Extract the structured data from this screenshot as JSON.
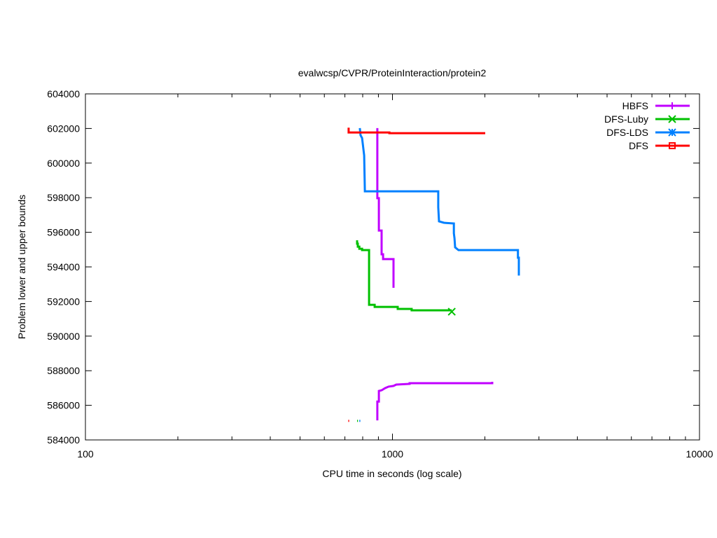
{
  "chart_data": {
    "type": "line",
    "title": "evalwcsp/CVPR/ProteinInteraction/protein2",
    "xlabel": "CPU time in seconds (log scale)",
    "ylabel": "Problem lower and upper bounds",
    "xscale": "log",
    "xlim": [
      100,
      10000
    ],
    "ylim": [
      584000,
      604000
    ],
    "xticks": [
      100,
      1000,
      10000
    ],
    "xtick_labels": [
      "100",
      "1000",
      "10000"
    ],
    "yticks": [
      584000,
      586000,
      588000,
      590000,
      592000,
      594000,
      596000,
      598000,
      600000,
      602000,
      604000
    ],
    "ytick_labels": [
      "584000",
      "586000",
      "588000",
      "590000",
      "592000",
      "594000",
      "596000",
      "598000",
      "600000",
      "602000",
      "604000"
    ],
    "grid": false,
    "legend_position": "top-right",
    "series": [
      {
        "name": "HBFS",
        "color": "#c000ff",
        "marker": "plus",
        "segments": [
          [
            [
              893,
              602020
            ],
            [
              893,
              597970
            ],
            [
              903,
              597970
            ],
            [
              903,
              596100
            ],
            [
              922,
              596100
            ],
            [
              922,
              594730
            ],
            [
              932,
              594730
            ],
            [
              932,
              594450
            ],
            [
              1008,
              594450
            ],
            [
              1008,
              592790
            ]
          ],
          [
            [
              893,
              585130
            ],
            [
              893,
              586220
            ],
            [
              903,
              586220
            ],
            [
              903,
              586830
            ],
            [
              922,
              586870
            ],
            [
              946,
              586990
            ],
            [
              971,
              587080
            ],
            [
              1008,
              587120
            ],
            [
              1029,
              587200
            ],
            [
              1137,
              587240
            ],
            [
              1137,
              587280
            ],
            [
              2113,
              587280
            ],
            [
              2113,
              587360
            ]
          ]
        ],
        "end_marker": false
      },
      {
        "name": "DFS-Luby",
        "color": "#00c000",
        "marker": "x",
        "segments": [
          [
            [
              767,
              595540
            ],
            [
              767,
              595340
            ],
            [
              771,
              595340
            ],
            [
              771,
              595170
            ],
            [
              780,
              595170
            ],
            [
              780,
              595050
            ],
            [
              796,
              595050
            ],
            [
              796,
              594970
            ],
            [
              839,
              594970
            ],
            [
              839,
              591810
            ],
            [
              875,
              591810
            ],
            [
              875,
              591690
            ],
            [
              1040,
              591690
            ],
            [
              1040,
              591570
            ],
            [
              1155,
              591570
            ],
            [
              1155,
              591490
            ],
            [
              1560,
              591490
            ]
          ],
          [
            [
              767,
              585100
            ],
            [
              772,
              585100
            ]
          ]
        ],
        "end_marker": true,
        "end_point": [
          1560,
          591410
        ]
      },
      {
        "name": "DFS-LDS",
        "color": "#0080ff",
        "marker": "star",
        "segments": [
          [
            [
              783,
              602020
            ],
            [
              787,
              601610
            ],
            [
              796,
              601450
            ],
            [
              809,
              600440
            ],
            [
              813,
              598370
            ],
            [
              1410,
              598370
            ],
            [
              1410,
              597440
            ],
            [
              1418,
              596630
            ],
            [
              1471,
              596550
            ],
            [
              1585,
              596510
            ],
            [
              1585,
              595940
            ],
            [
              1592,
              595660
            ],
            [
              1600,
              595130
            ],
            [
              1641,
              594970
            ],
            [
              2563,
              594970
            ],
            [
              2563,
              594530
            ],
            [
              2580,
              594530
            ],
            [
              2580,
              593500
            ]
          ],
          [
            [
              780,
              585100
            ],
            [
              786,
              585100
            ]
          ]
        ],
        "end_marker": false
      },
      {
        "name": "DFS",
        "color": "#ff0000",
        "marker": "square",
        "segments": [
          [
            [
              720,
              602050
            ],
            [
              720,
              601770
            ],
            [
              977,
              601770
            ],
            [
              977,
              601730
            ],
            [
              2005,
              601730
            ]
          ],
          [
            [
              718,
              585100
            ],
            [
              723,
              585100
            ]
          ]
        ],
        "end_marker": false
      }
    ]
  }
}
